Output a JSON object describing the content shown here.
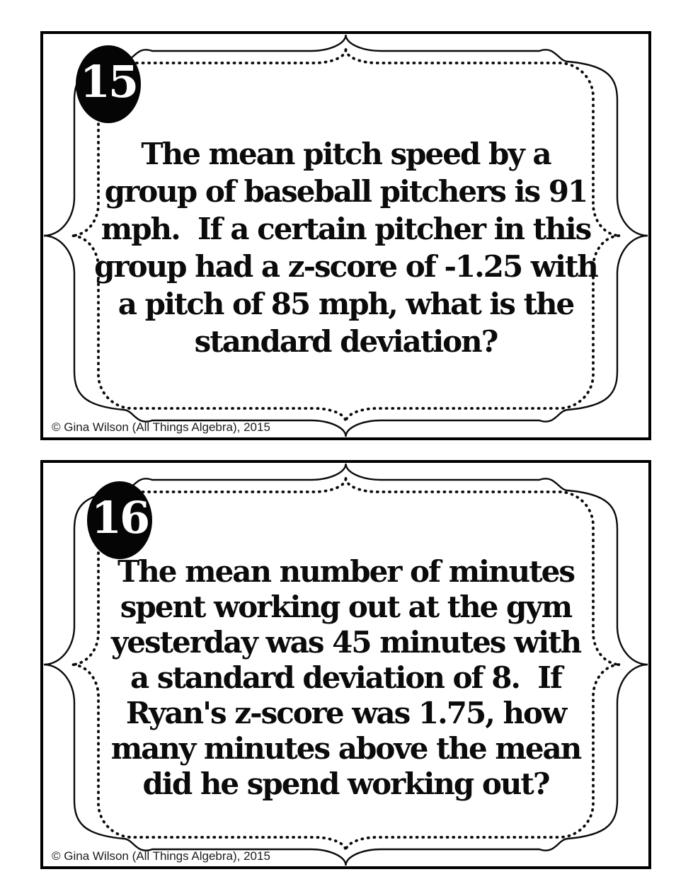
{
  "page": {
    "background": "#ffffff"
  },
  "colors": {
    "card_border": "#000000",
    "frame_line": "#0a0a0a",
    "badge_background": "#050505",
    "badge_number": "#ffffff",
    "question_text": "#0b0b0b",
    "copyright_text": "#1c1c1c"
  },
  "cards": [
    {
      "number": "15",
      "lines": [
        "The mean pitch speed by a",
        "group of baseball pitchers is 91",
        "mph.  If a certain pitcher in this",
        "group had a z-score of -1.25 with",
        "a pitch of 85 mph, what is the",
        "standard deviation?"
      ],
      "copyright": "© Gina Wilson (All Things Algebra), 2015"
    },
    {
      "number": "16",
      "lines": [
        "The mean number of minutes",
        "spent working out at the gym",
        "yesterday was 45 minutes with",
        "a standard deviation of 8.  If",
        "Ryan's z-score was 1.75, how",
        "many minutes above the mean",
        "did he spend working out?"
      ],
      "copyright": "© Gina Wilson (All Things Algebra), 2015"
    }
  ]
}
